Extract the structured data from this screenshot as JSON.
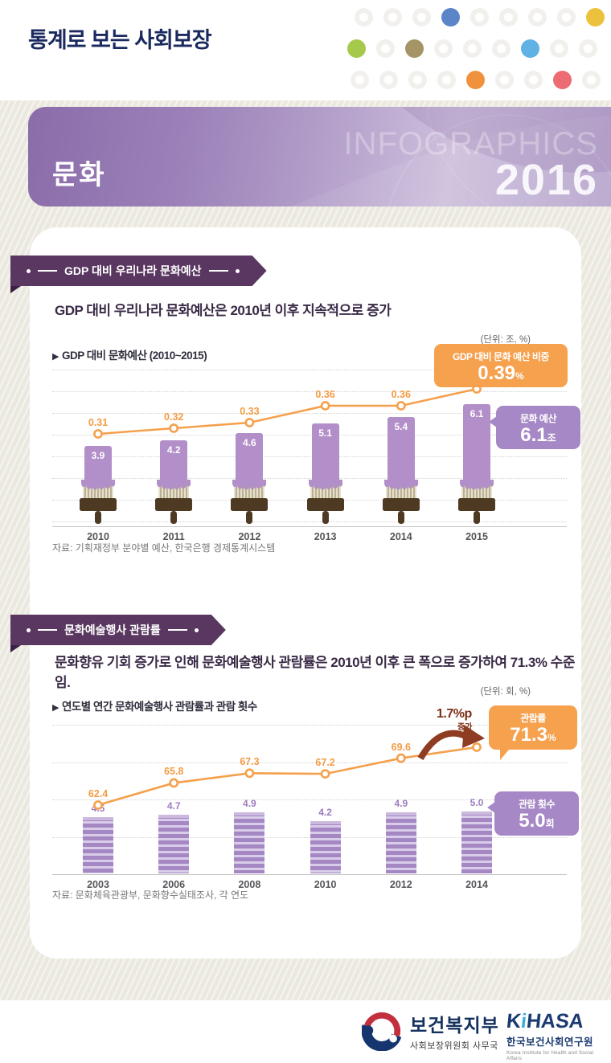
{
  "header": {
    "title": "통계로 보는 사회보장",
    "dot_rows": [
      [
        null,
        null,
        null,
        "#5b85c8",
        null,
        null,
        null,
        null,
        "#ecc23d"
      ],
      [
        "#a6c94b",
        null,
        "#a59465",
        null,
        null,
        null,
        "#5fb2e3",
        null,
        null
      ],
      [
        null,
        null,
        null,
        null,
        "#f0913d",
        null,
        null,
        "#ed6b72",
        null
      ]
    ]
  },
  "banner": {
    "category": "문화",
    "watermark": "INFOGRAPHICS",
    "year": "2016",
    "color": "#9a7fb8"
  },
  "section1": {
    "badge": "GDP 대비 우리나라 문화예산",
    "headline": "GDP 대비 우리나라 문화예산은 2010년 이후 지속적으로 증가",
    "unit": "(단위: 조, %)",
    "bullet": "▶",
    "chart_title": "GDP 대비 문화예산 (2010~2015)",
    "source": "자료: 기획재정부 분야별 예산, 한국은행 경제통계시스템",
    "callout_ratio": {
      "label": "GDP 대비 문화 예산 비중",
      "value": "0.39",
      "unit": "%"
    },
    "callout_budget": {
      "label": "문화 예산",
      "value": "6.1",
      "unit": "조"
    }
  },
  "section2": {
    "badge": "문화예술행사 관람률",
    "headline": "문화향유 기회 증가로 인해 문화예술행사 관람률은 2010년 이후 큰 폭으로 증가하여 71.3% 수준임.",
    "unit": "(단위: 회, %)",
    "bullet": "▶",
    "chart_title": "연도별 연간 문화예술행사 관람률과 관람 횟수",
    "source": "자료: 문화체육관광부, 문화향수실태조사, 각 연도",
    "annotation": {
      "value": "1.7%p",
      "label": "증가"
    },
    "callout_rate": {
      "label": "관람률",
      "value": "71.3",
      "unit": "%"
    },
    "callout_count": {
      "label": "관람 횟수",
      "value": "5.0",
      "unit": "회"
    }
  },
  "footer": {
    "mohw": {
      "name": "보건복지부",
      "sub": "사회보장위원회 사무국"
    },
    "kihasa": {
      "name_k": "K",
      "name_i": "i",
      "name_rest": "HASA",
      "kr": "한국보건사회연구원",
      "en": "Korea Institute for Health and Social Affairs"
    }
  },
  "chart_data": [
    {
      "type": "bar+line",
      "title": "GDP 대비 문화예산 (2010~2015)",
      "unit": "조, %",
      "categories": [
        "2010",
        "2011",
        "2012",
        "2013",
        "2014",
        "2015"
      ],
      "series": [
        {
          "name": "문화 예산(조)",
          "type": "bar",
          "values": [
            3.9,
            4.2,
            4.6,
            5.1,
            5.4,
            6.1
          ]
        },
        {
          "name": "GDP 대비 문화 예산 비중(%)",
          "type": "line",
          "values": [
            0.31,
            0.32,
            0.33,
            0.36,
            0.36,
            0.39
          ]
        }
      ],
      "bar_color": "#b28fc9",
      "line_color": "#f5a04c",
      "grid": "dotted-horizontal",
      "legend_position": "none"
    },
    {
      "type": "bar+line",
      "title": "연도별 연간 문화예술행사 관람률과 관람 횟수",
      "unit": "회, %",
      "categories": [
        "2003",
        "2006",
        "2008",
        "2010",
        "2012",
        "2014"
      ],
      "series": [
        {
          "name": "관람 횟수(회)",
          "type": "bar",
          "values": [
            4.5,
            4.7,
            4.9,
            4.2,
            4.9,
            5.0
          ]
        },
        {
          "name": "관람률(%)",
          "type": "line",
          "values": [
            62.4,
            65.8,
            67.3,
            67.2,
            69.6,
            71.3
          ]
        }
      ],
      "bar_color": "#a587c4",
      "line_color": "#f5a04c",
      "grid": "dotted-horizontal",
      "legend_position": "none"
    }
  ]
}
